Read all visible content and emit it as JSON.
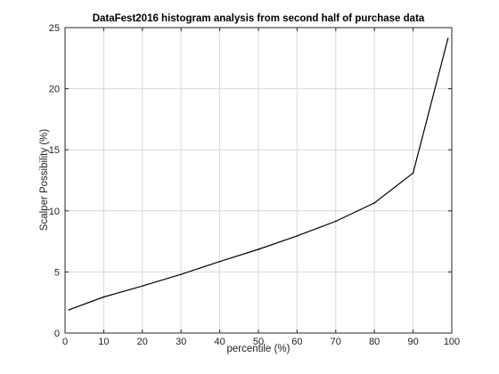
{
  "chart_data": {
    "type": "line",
    "title": "DataFest2016 histogram analysis from second half of purchase data",
    "xlabel": "percentile (%)",
    "ylabel": "Scalper Possibility (%)",
    "xlim": [
      0,
      100
    ],
    "ylim": [
      0,
      25
    ],
    "xticks": [
      0,
      10,
      20,
      30,
      40,
      50,
      60,
      70,
      80,
      90,
      100
    ],
    "yticks": [
      0,
      5,
      10,
      15,
      20,
      25
    ],
    "grid": true,
    "series": [
      {
        "x": [
          1,
          10,
          20,
          30,
          40,
          50,
          60,
          70,
          80,
          90,
          99
        ],
        "y": [
          1.9,
          2.95,
          3.85,
          4.8,
          5.85,
          6.85,
          7.95,
          9.15,
          10.65,
          13.1,
          24.1
        ]
      }
    ]
  },
  "colors": {
    "line": "#000000",
    "grid": "#d9d9d9",
    "axes": "#262626"
  }
}
